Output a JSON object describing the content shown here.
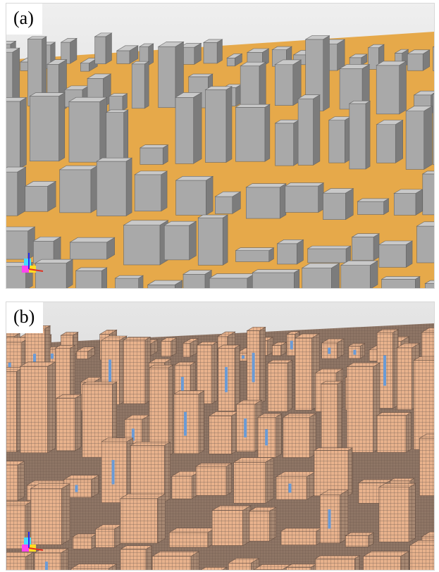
{
  "figure": {
    "panels": [
      {
        "label": "(a)",
        "description_kind": "3D rendered city model with surface geometry",
        "colors": {
          "ground": "#e6a94a",
          "building": "#a7a7a7",
          "building_shade": "#7b7b7b",
          "sky": "#e8e8e8"
        }
      },
      {
        "label": "(b)",
        "description_kind": "voxelized 3D city model",
        "colors": {
          "voxel": "#e8b28c",
          "voxel_edge": "#7a6456",
          "ground": "#8e7565",
          "water": "#6a9bd6",
          "sky": "#dedede"
        }
      }
    ],
    "axis_gizmo_icon": "axis-gizmo-icon"
  }
}
